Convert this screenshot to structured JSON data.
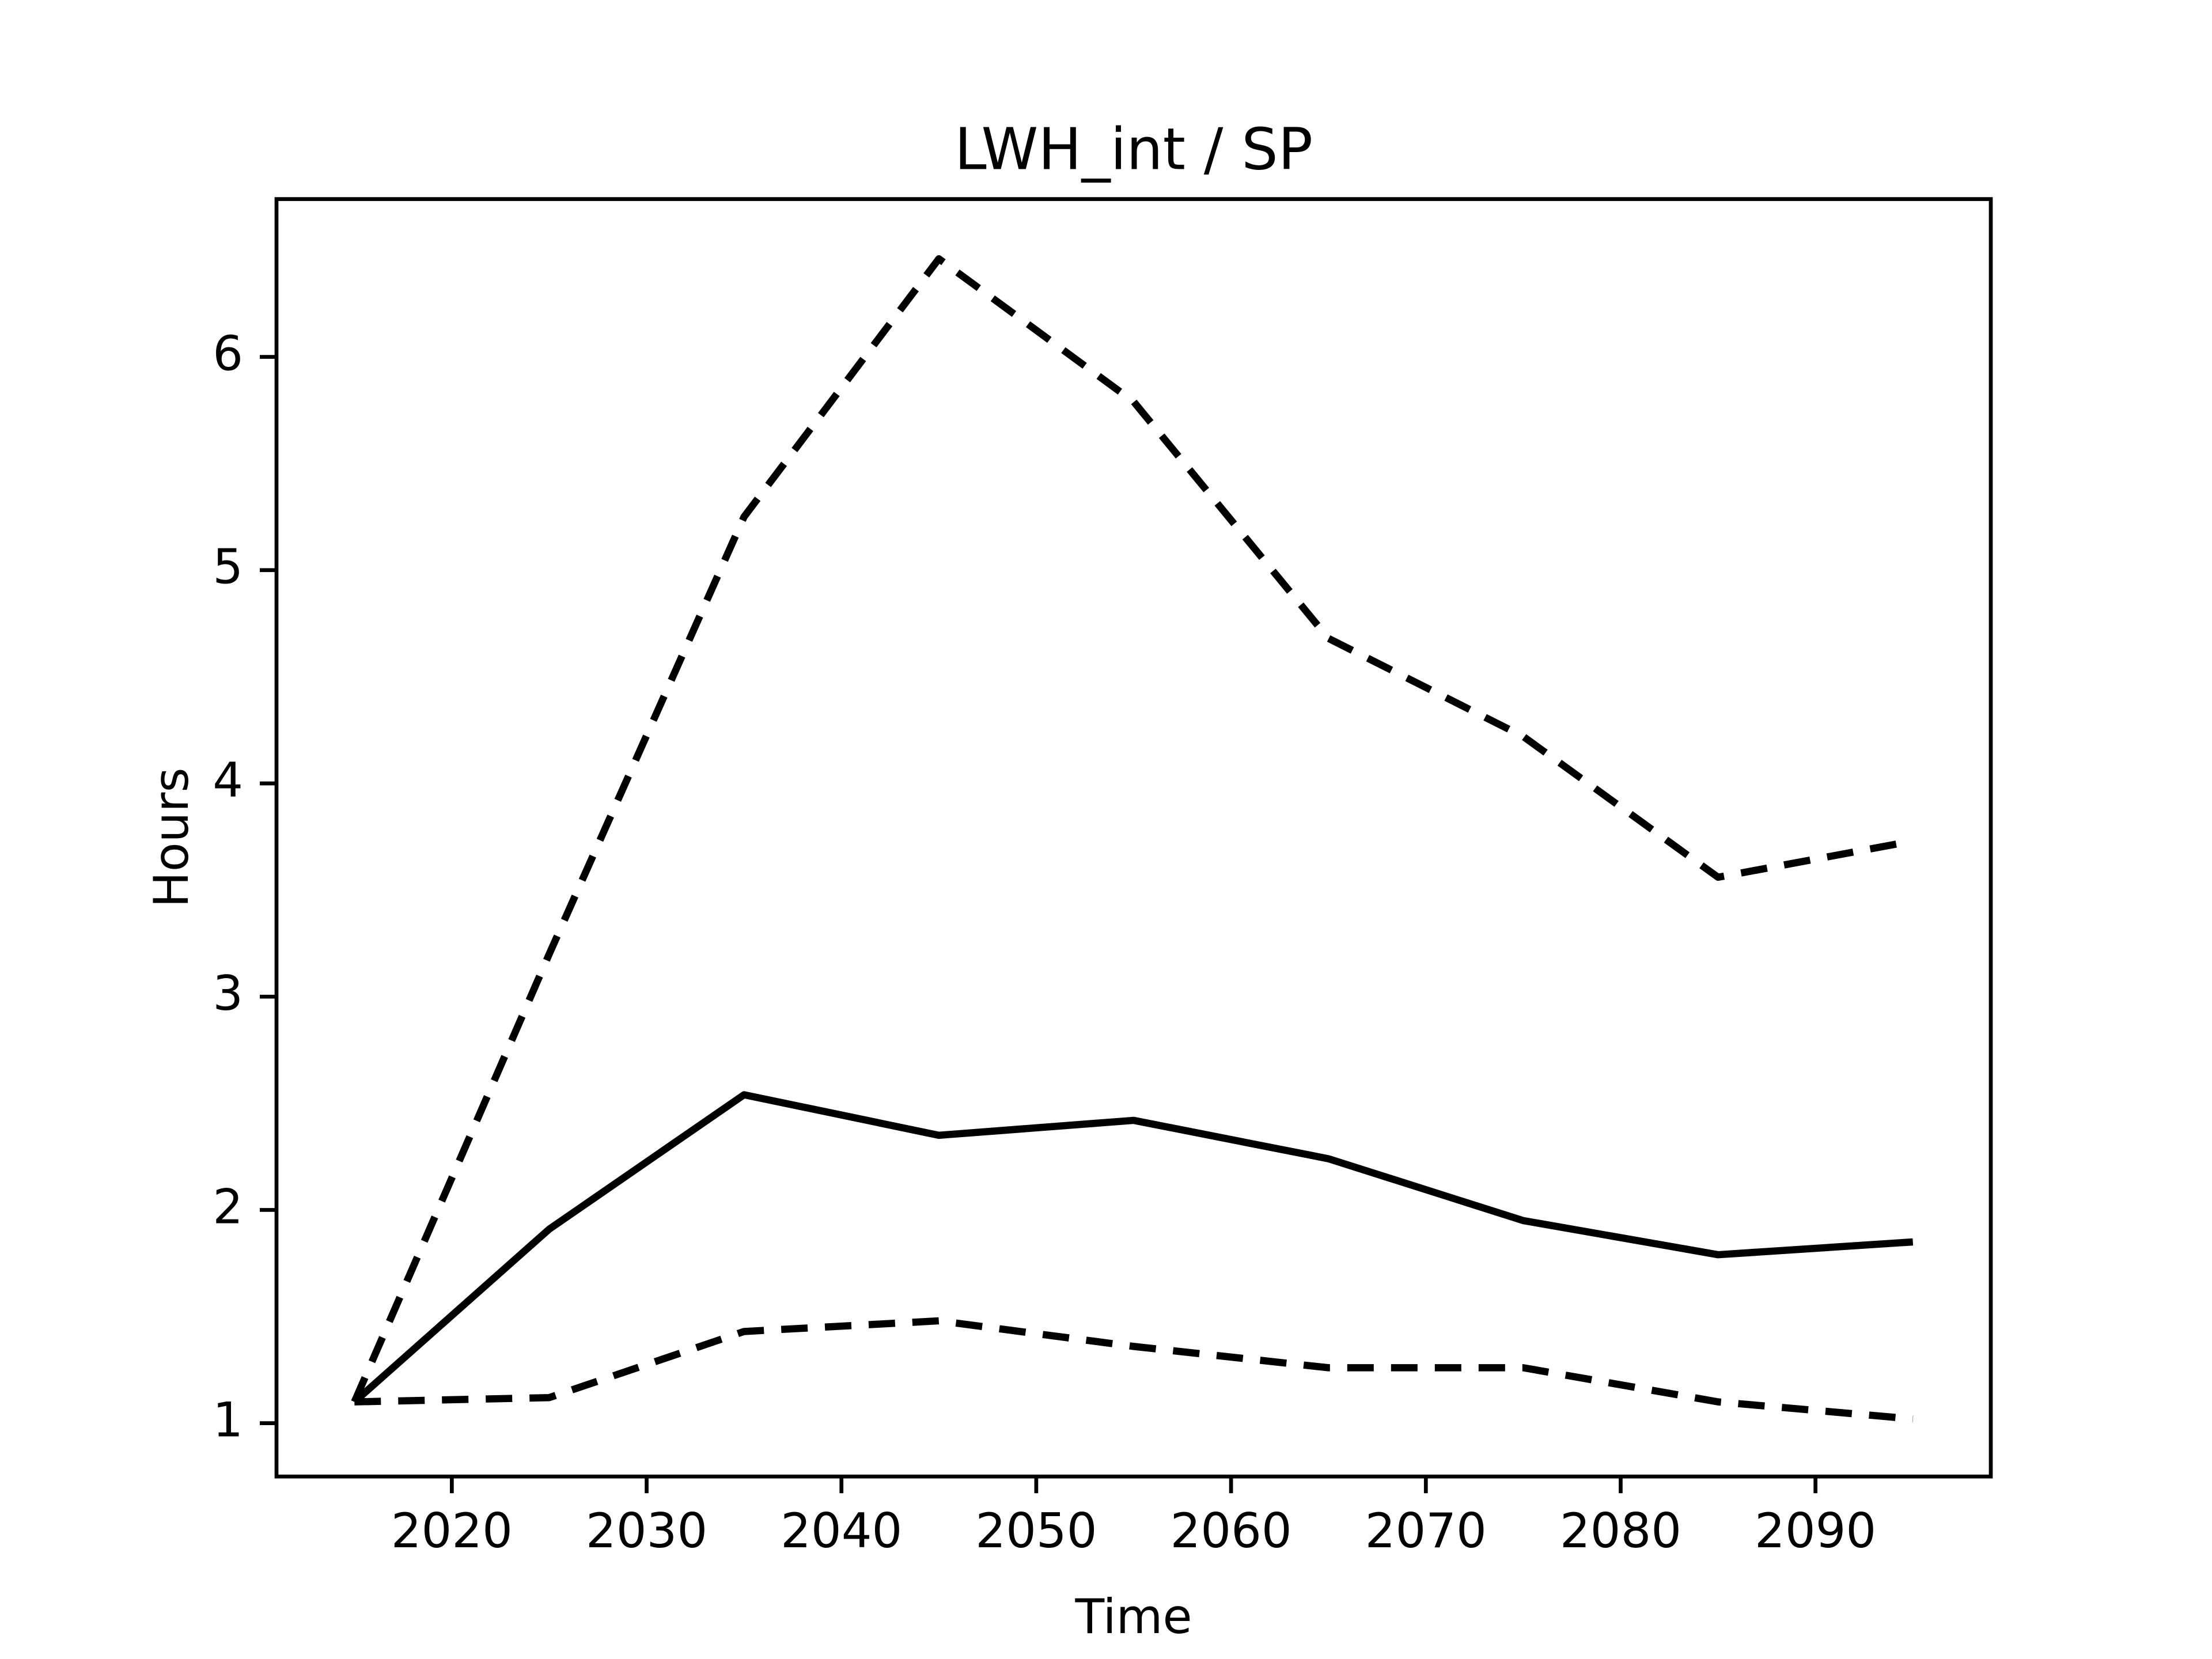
{
  "chart_data": {
    "type": "line",
    "title": "LWH_int / SP",
    "xlabel": "Time",
    "ylabel": "Hours",
    "x": [
      2015,
      2025,
      2035,
      2045,
      2055,
      2065,
      2075,
      2085,
      2095
    ],
    "series": [
      {
        "color": "#000000",
        "linestyle": "solid",
        "values": [
          1.1,
          1.91,
          2.54,
          2.35,
          2.42,
          2.24,
          1.95,
          1.79,
          1.85
        ]
      },
      {
        "color": "#000000",
        "linestyle": "dashed",
        "values": [
          1.1,
          3.2,
          5.25,
          6.46,
          5.79,
          4.68,
          4.22,
          3.56,
          3.73
        ]
      },
      {
        "color": "#000000",
        "linestyle": "dashed",
        "values": [
          1.1,
          1.12,
          1.43,
          1.48,
          1.36,
          1.26,
          1.26,
          1.1,
          1.02
        ]
      }
    ],
    "xlim": [
      2011,
      2099
    ],
    "xticks": [
      2020,
      2030,
      2040,
      2050,
      2060,
      2070,
      2080,
      2090
    ],
    "ylim": [
      0.75,
      6.74
    ],
    "yticks": [
      1,
      2,
      3,
      4,
      5,
      6
    ],
    "grid": false
  }
}
